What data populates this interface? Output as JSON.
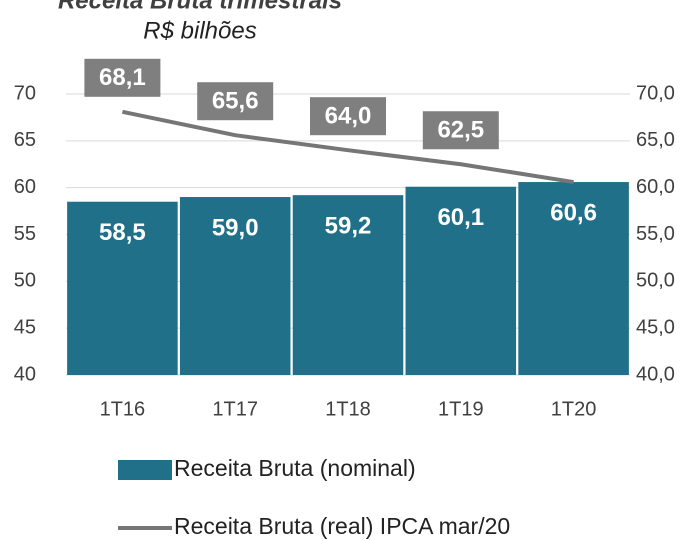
{
  "chart_data": {
    "type": "combo",
    "title": "Receita Bruta trimestrais",
    "subtitle": "R$ bilhões",
    "categories": [
      "1T16",
      "1T17",
      "1T18",
      "1T19",
      "1T20"
    ],
    "series": [
      {
        "name": "Receita Bruta (nominal)",
        "type": "bar",
        "color": "#1f7088",
        "values": [
          58.5,
          59.0,
          59.2,
          60.1,
          60.6
        ],
        "value_labels": [
          "58,5",
          "59,0",
          "59,2",
          "60,1",
          "60,6"
        ]
      },
      {
        "name": "Receita Bruta (real) IPCA mar/20",
        "type": "line",
        "axis": "y2",
        "color": "#767676",
        "values": [
          68.1,
          65.6,
          64.0,
          62.5,
          60.6
        ],
        "value_labels": [
          "68,1",
          "65,6",
          "64,0",
          "62,5",
          "60,6"
        ]
      }
    ],
    "ylim": [
      40,
      70
    ],
    "yticks": [
      40,
      45,
      50,
      55,
      60,
      65,
      70
    ],
    "y2lim": [
      40,
      70
    ],
    "y2ticks": [
      {
        "value": 40,
        "label": "40,0"
      },
      {
        "value": 45,
        "label": "45,0"
      },
      {
        "value": 50,
        "label": "50,0"
      },
      {
        "value": 55,
        "label": "55,0"
      },
      {
        "value": 60,
        "label": "60,0"
      },
      {
        "value": 65,
        "label": "65,0"
      },
      {
        "value": 70,
        "label": "70,0"
      }
    ],
    "grid": true,
    "legend": "bottom"
  }
}
